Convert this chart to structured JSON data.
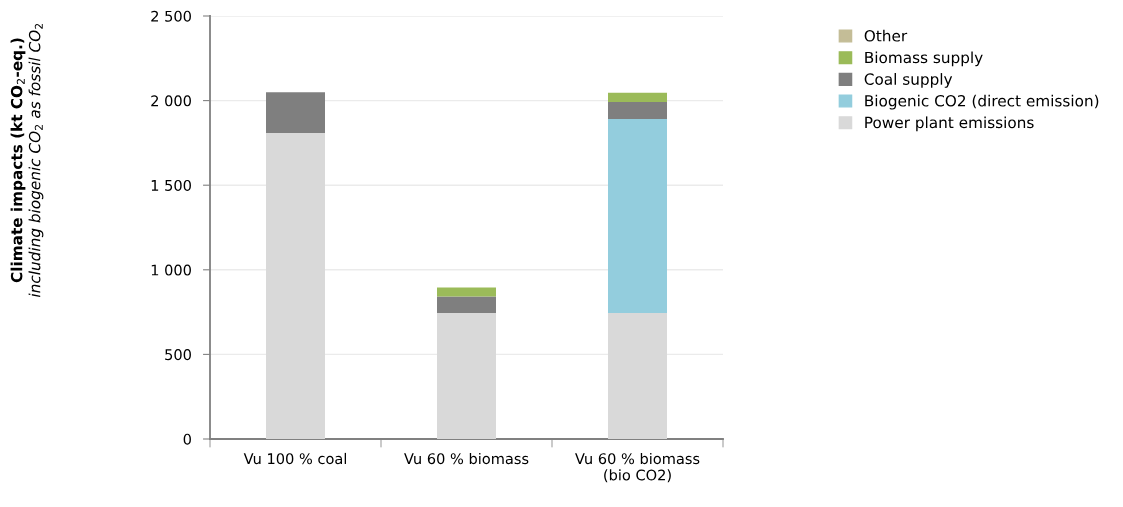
{
  "chart_data": {
    "type": "bar",
    "stacked": true,
    "ylabel": "Climate impacts (kt CO$_{2}$-eq.)\nincluding biogenic CO$_{2}$ as fossil CO$_{2}$",
    "categories": [
      "Vu 100 % coal",
      "Vu 60 % biomass",
      "Vu 60 % biomass\n(bio CO2)"
    ],
    "series": [
      {
        "name": "Power plant emissions",
        "color": "#d9d9d9",
        "values": [
          1808,
          744,
          744
        ]
      },
      {
        "name": "Biogenic CO2 (direct emission)",
        "color": "#93cddd",
        "values": [
          0,
          0,
          1147
        ]
      },
      {
        "name": "Coal supply",
        "color": "#7f7f7f",
        "values": [
          242,
          98,
          100
        ]
      },
      {
        "name": "Biomass supply",
        "color": "#9bbb59",
        "values": [
          0,
          53,
          55
        ]
      },
      {
        "name": "Other",
        "color": "#c4bd97",
        "values": [
          0,
          0,
          0
        ]
      }
    ],
    "ylim": [
      0,
      2500
    ],
    "yticks": [
      0,
      500,
      {
        "value": 1000,
        "label": "1 000"
      },
      {
        "value": 1500,
        "label": "1 500"
      },
      {
        "value": 2000,
        "label": "2 000"
      },
      {
        "value": 2500,
        "label": "2 500"
      }
    ],
    "grid": "y",
    "legend": "top right"
  }
}
